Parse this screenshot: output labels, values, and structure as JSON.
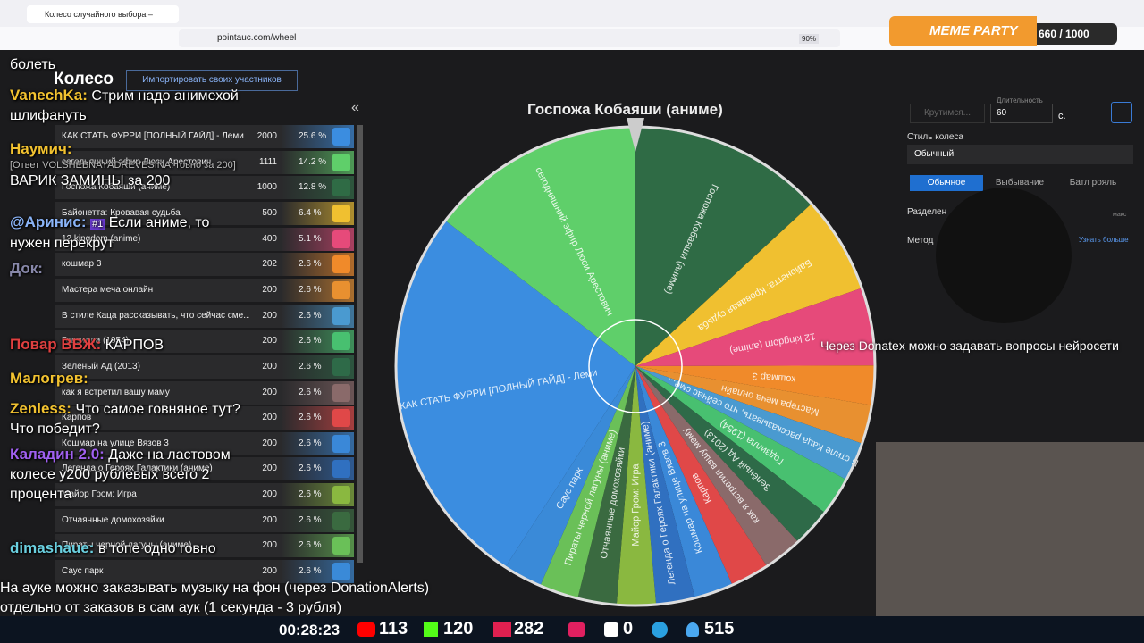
{
  "browser": {
    "tab_title": "Колесо случайного выбора –",
    "url": "pointauc.com/wheel",
    "zoom": "90%"
  },
  "widget": {
    "title": "MEME PARTY",
    "progress": "660 / 1000"
  },
  "page": {
    "heading": "Колесо",
    "import_button": "Импортировать своих участников",
    "collapse": "«"
  },
  "list": {
    "rows": [
      {
        "name": "КАК СТАТЬ ФУРРИ [ПОЛНЫЙ ГАЙД] - Леми",
        "amount": 2000,
        "percent": "25.6 %",
        "color": "#3b8de0"
      },
      {
        "name": "сегодняшний эфир Люси Арестович",
        "amount": 1111,
        "percent": "14.2 %",
        "color": "#5fcf6a"
      },
      {
        "name": "Госпожа Кобаяши (аниме)",
        "amount": 1000,
        "percent": "12.8 %",
        "color": "#2f6b45"
      },
      {
        "name": "Байонетта: Кровавая судьба",
        "amount": 500,
        "percent": "6.4 %",
        "color": "#f0c030"
      },
      {
        "name": "12 kingdom (anime)",
        "amount": 400,
        "percent": "5.1 %",
        "color": "#e64a7a"
      },
      {
        "name": "кошмар 3",
        "amount": 202,
        "percent": "2.6 %",
        "color": "#f08a2a"
      },
      {
        "name": "Мастера меча онлайн",
        "amount": 200,
        "percent": "2.6 %",
        "color": "#e89030"
      },
      {
        "name": "В стиле Каца рассказывать, что сейчас сме...",
        "amount": 200,
        "percent": "2.6 %",
        "color": "#4a9ad0"
      },
      {
        "name": "Годзилла (1954)",
        "amount": 200,
        "percent": "2.6 %",
        "color": "#48c070"
      },
      {
        "name": "Зелёный Ад (2013)",
        "amount": 200,
        "percent": "2.6 %",
        "color": "#2e6a48"
      },
      {
        "name": "как я встретил вашу маму",
        "amount": 200,
        "percent": "2.6 %",
        "color": "#8a6a6a"
      },
      {
        "name": "Карпов",
        "amount": 200,
        "percent": "2.6 %",
        "color": "#e04848"
      },
      {
        "name": "Кошмар на улице Вязов 3",
        "amount": 200,
        "percent": "2.6 %",
        "color": "#3a88d8"
      },
      {
        "name": "Легенда о Героях Галактики (аниме)",
        "amount": 200,
        "percent": "2.6 %",
        "color": "#3070c0"
      },
      {
        "name": "Майор Гром: Игра",
        "amount": 200,
        "percent": "2.6 %",
        "color": "#8ab840"
      },
      {
        "name": "Отчаянные домохозяйки",
        "amount": 200,
        "percent": "2.6 %",
        "color": "#3a6a40"
      },
      {
        "name": "Пираты черной лагуны (аниме)",
        "amount": 200,
        "percent": "2.6 %",
        "color": "#6ac058"
      },
      {
        "name": "Саус парк",
        "amount": 200,
        "percent": "2.6 %",
        "color": "#3a8ad8"
      }
    ]
  },
  "wheel": {
    "winner": "Госпожа Кобаяши (аниме)"
  },
  "settings": {
    "spin_button": "Крутимся...",
    "duration_label": "Длительность",
    "duration": "60",
    "unit": "с.",
    "style_label": "Стиль колеса",
    "style": "Обычный",
    "tabs": [
      "Обычное",
      "Выбывание",
      "Батл рояль"
    ],
    "split_label": "Разделен",
    "max": "макс",
    "method_label": "Метод",
    "learn_more": "Узнать больше"
  },
  "chat": [
    {
      "name": "",
      "text": "болеть"
    },
    {
      "name": "VanechKa:",
      "text": "Стрим надо анимехой шлифануть"
    },
    {
      "name": "Наумич:",
      "reply": "[Ответ VOLSHEBNAYADREVESINA: говно за 200]",
      "text": "ВАРИК ЗАМИНЫ за 200"
    },
    {
      "name": "@Аринис:",
      "badge": "#1",
      "text": "Если аниме, то нужен перекрут"
    },
    {
      "name": "Док:",
      "text": ""
    },
    {
      "name": "Повар ВВЖ:",
      "text": "КАРПОВ"
    },
    {
      "name": "Малогрев:",
      "text": ""
    },
    {
      "name": "Zenless:",
      "text": "Что самое говняное тут? Что победит?"
    },
    {
      "name": "Каладин 2.0:",
      "text": "Даже на ластовом колесе у200 рублевых всего 2 процента"
    },
    {
      "name": "dimashaue:",
      "text": "в топе одно говно"
    }
  ],
  "captions": {
    "donatex": "Через Donatex можно задавать вопросы нейросети",
    "line1": "На ауке можно заказывать музыку на фон (через DonationAlerts)",
    "line2": "отдельно от заказов в сам аук (1 секунда - 3 рубля)"
  },
  "stream_bar": {
    "time": "00:28:23",
    "youtube": 113,
    "kick": 120,
    "live": 282,
    "rumble": 0,
    "viewers": 515
  }
}
